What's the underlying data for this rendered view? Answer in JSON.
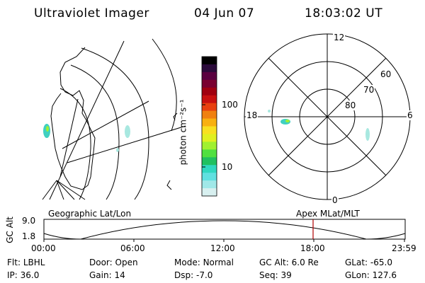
{
  "header": {
    "title": "Ultraviolet Imager",
    "date": "04 Jun 07",
    "time": "18:03:02 UT"
  },
  "colorbar": {
    "unit_label": "photon cm⁻²s⁻¹",
    "tick_labels": [
      "100",
      "10"
    ],
    "colors": [
      "#000000",
      "#2a0a3a",
      "#5a0040",
      "#7a0030",
      "#a00010",
      "#c81010",
      "#e84010",
      "#f08010",
      "#f8b010",
      "#f8e020",
      "#e0f020",
      "#a0f030",
      "#50e040",
      "#20c060",
      "#30d8c0",
      "#60e0e0",
      "#a0e8e8",
      "#d8f0f0"
    ]
  },
  "polar": {
    "mlt_labels": [
      "12",
      "18",
      "6",
      "0"
    ],
    "lat_labels": [
      "60",
      "70",
      "80"
    ]
  },
  "timeline": {
    "left_label": "Geographic Lat/Lon",
    "right_label": "Apex MLat/MLT",
    "axis_label": "GC Alt",
    "y_ticks": [
      "9.0",
      "1.8"
    ],
    "x_ticks": [
      "00:00",
      "06:00",
      "12:00",
      "18:00",
      "23:59"
    ],
    "marker_color": "#b00000"
  },
  "footer": {
    "row1": [
      {
        "key": "Flt:",
        "value": "LBHL"
      },
      {
        "key": "Door:",
        "value": "Open"
      },
      {
        "key": "Mode:",
        "value": "Normal"
      },
      {
        "key": "GC Alt:",
        "value": "6.0 Re"
      },
      {
        "key": "GLat:",
        "value": "-65.0"
      }
    ],
    "row2": [
      {
        "key": "IP:",
        "value": "36.0"
      },
      {
        "key": "Gain:",
        "value": "14"
      },
      {
        "key": "Dsp:",
        "value": "-7.0"
      },
      {
        "key": "Seq:",
        "value": "39"
      },
      {
        "key": "GLon:",
        "value": "127.6"
      }
    ]
  }
}
